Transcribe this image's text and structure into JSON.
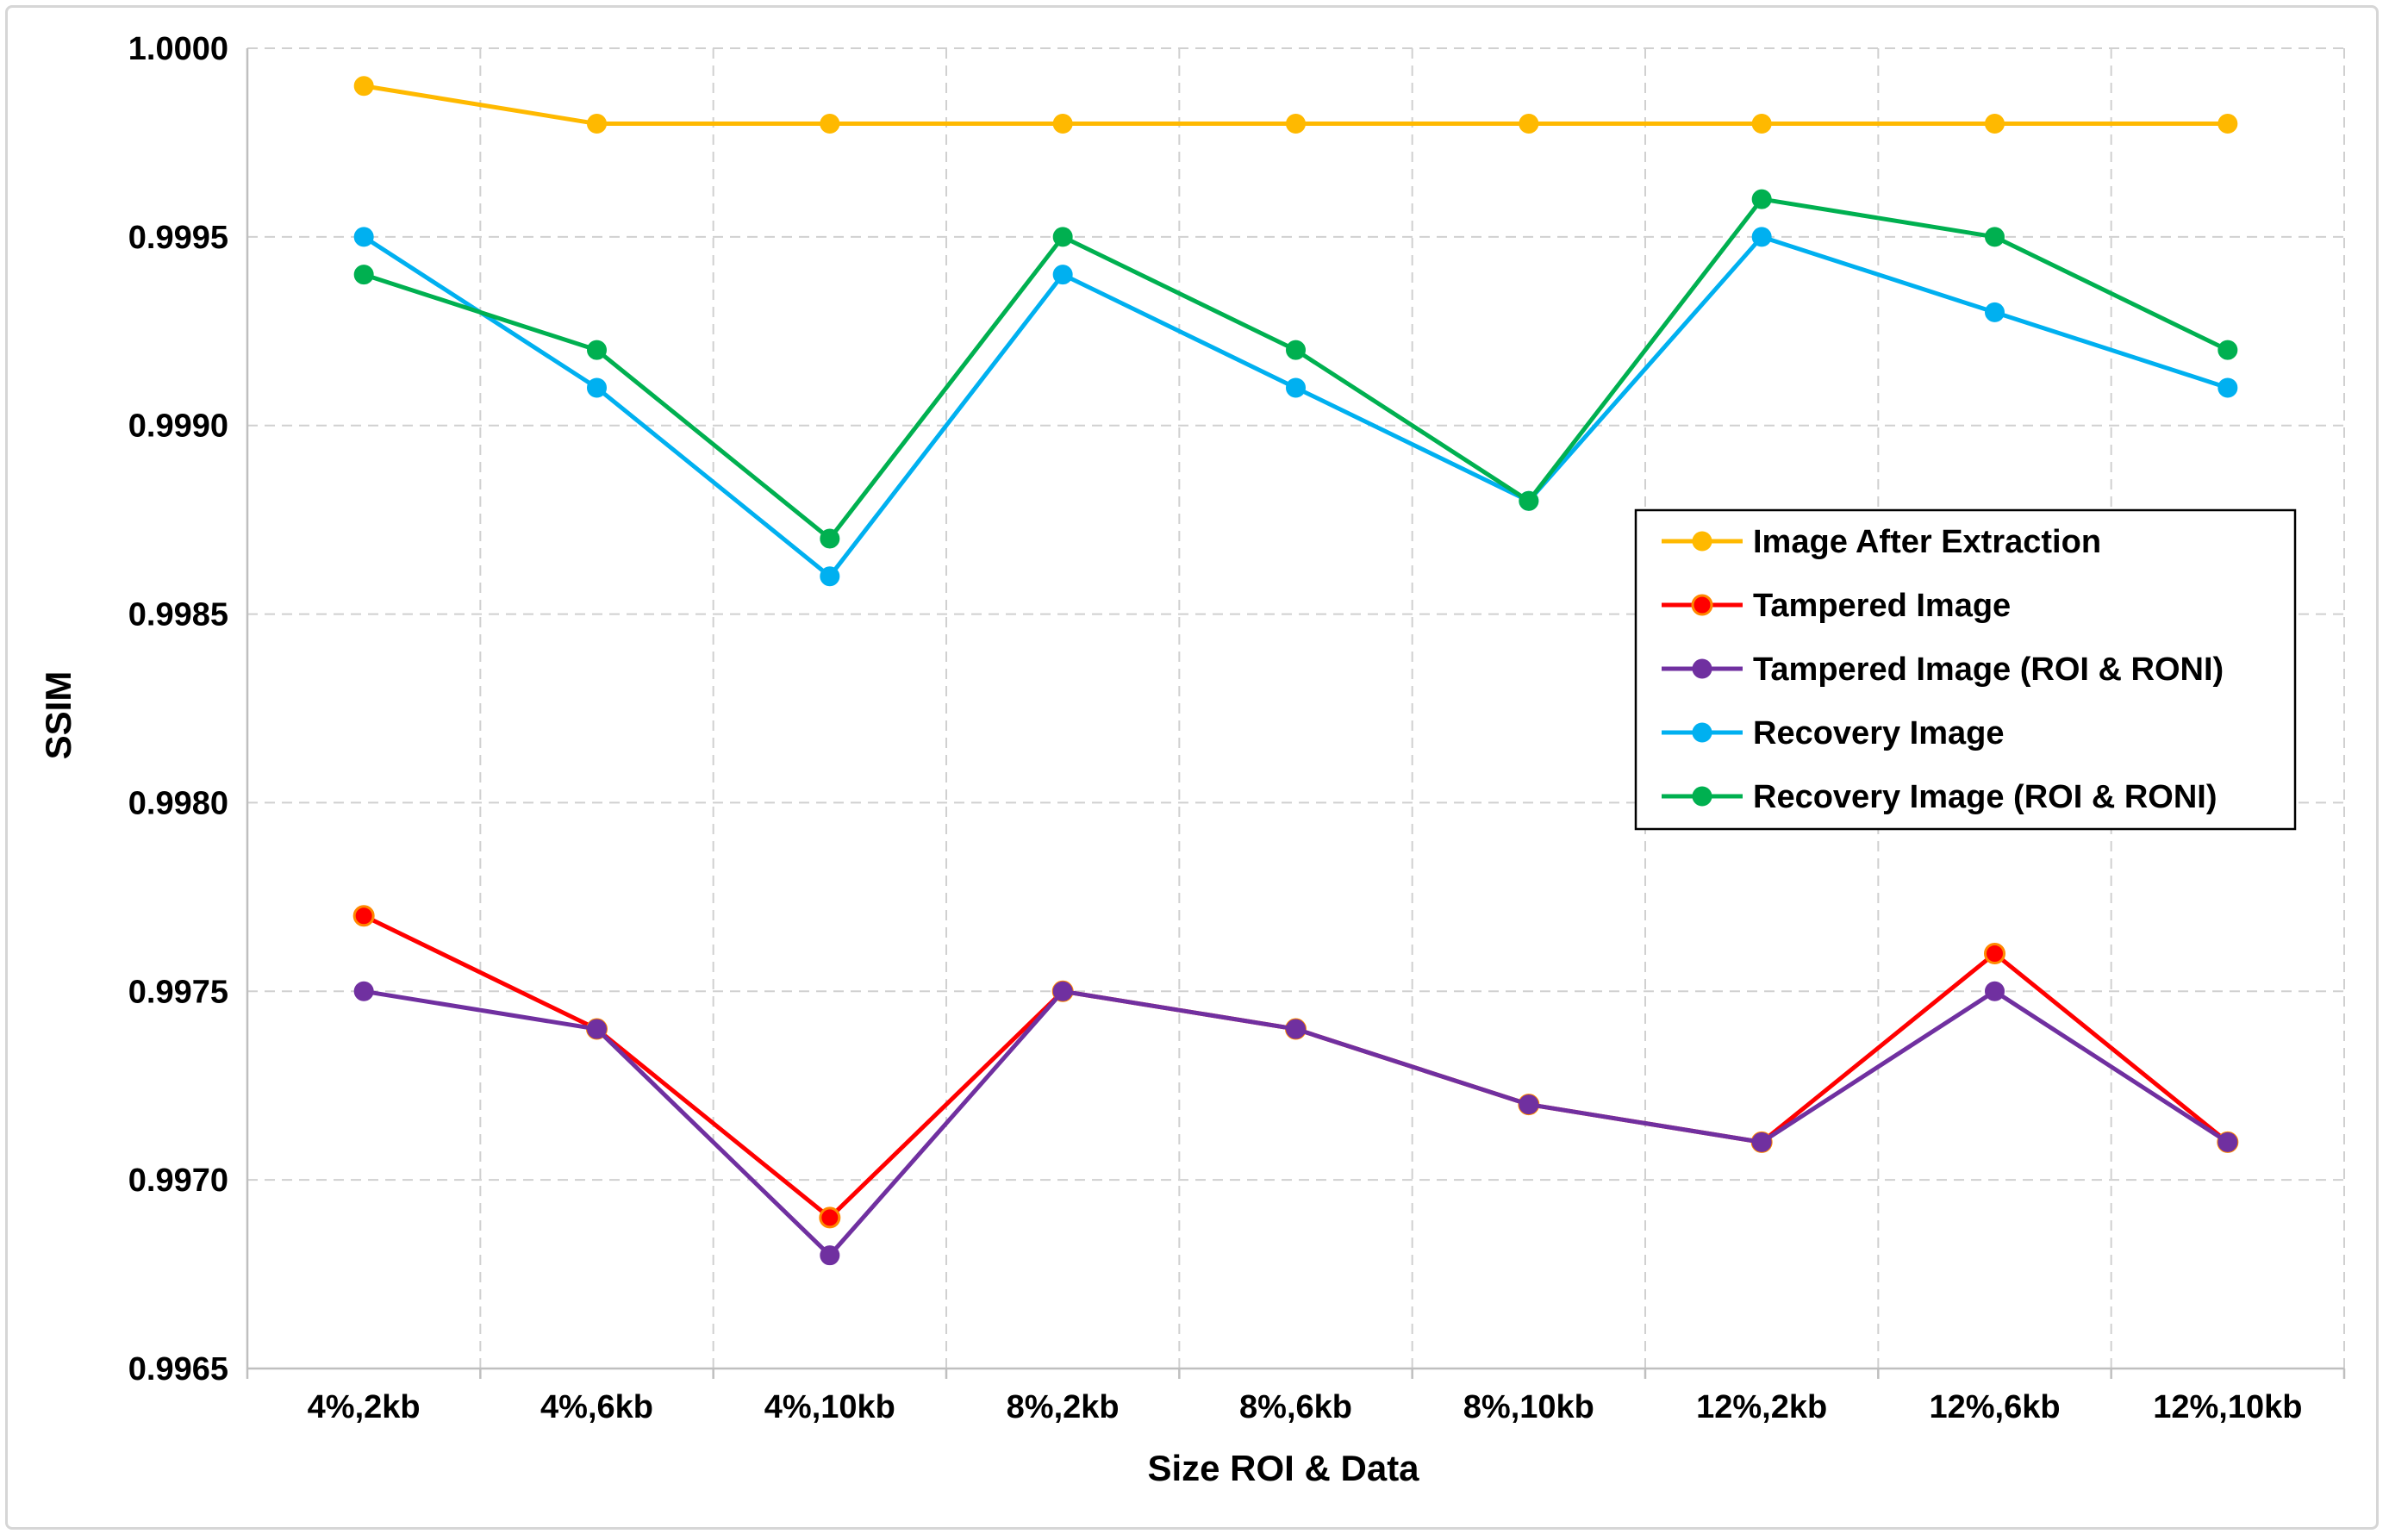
{
  "chart_data": {
    "type": "line",
    "title": "",
    "xlabel": "Size ROI & Data",
    "ylabel": "SSIM",
    "ylim": [
      0.9965,
      1.0
    ],
    "yticks": [
      "0.9965",
      "0.9970",
      "0.9975",
      "0.9980",
      "0.9985",
      "0.9990",
      "0.9995",
      "1.0000"
    ],
    "ytick_values": [
      0.9965,
      0.997,
      0.9975,
      0.998,
      0.9985,
      0.999,
      0.9995,
      1.0
    ],
    "grid": true,
    "legend_position": "right",
    "categories": [
      "4%,2kb",
      "4%,6kb",
      "4%,10kb",
      "8%,2kb",
      "8%,6kb",
      "8%,10kb",
      "12%,2kb",
      "12%,6kb",
      "12%,10kb"
    ],
    "series": [
      {
        "name": "Image After Extraction",
        "color": "#FFB900",
        "values": [
          0.9999,
          0.9998,
          0.9998,
          0.9998,
          0.9998,
          0.9998,
          0.9998,
          0.9998,
          0.9998
        ]
      },
      {
        "name": "Tampered Image",
        "color": "#FF0000",
        "values": [
          0.9977,
          0.9974,
          0.9969,
          0.9975,
          0.9974,
          0.9972,
          0.9971,
          0.9976,
          0.9971
        ]
      },
      {
        "name": "Tampered Image (ROI & RONI)",
        "color": "#7030A0",
        "values": [
          0.9975,
          0.9974,
          0.9968,
          0.9975,
          0.9974,
          0.9972,
          0.9971,
          0.9975,
          0.9971
        ]
      },
      {
        "name": "Recovery Image",
        "color": "#00B0F0",
        "values": [
          0.9995,
          0.9991,
          0.9986,
          0.9994,
          0.9991,
          0.9988,
          0.9995,
          0.9993,
          0.9991
        ]
      },
      {
        "name": "Recovery Image (ROI & RONI)",
        "color": "#00B050",
        "values": [
          0.9994,
          0.9992,
          0.9987,
          0.9995,
          0.9992,
          0.9988,
          0.9996,
          0.9995,
          0.9992
        ]
      }
    ]
  }
}
